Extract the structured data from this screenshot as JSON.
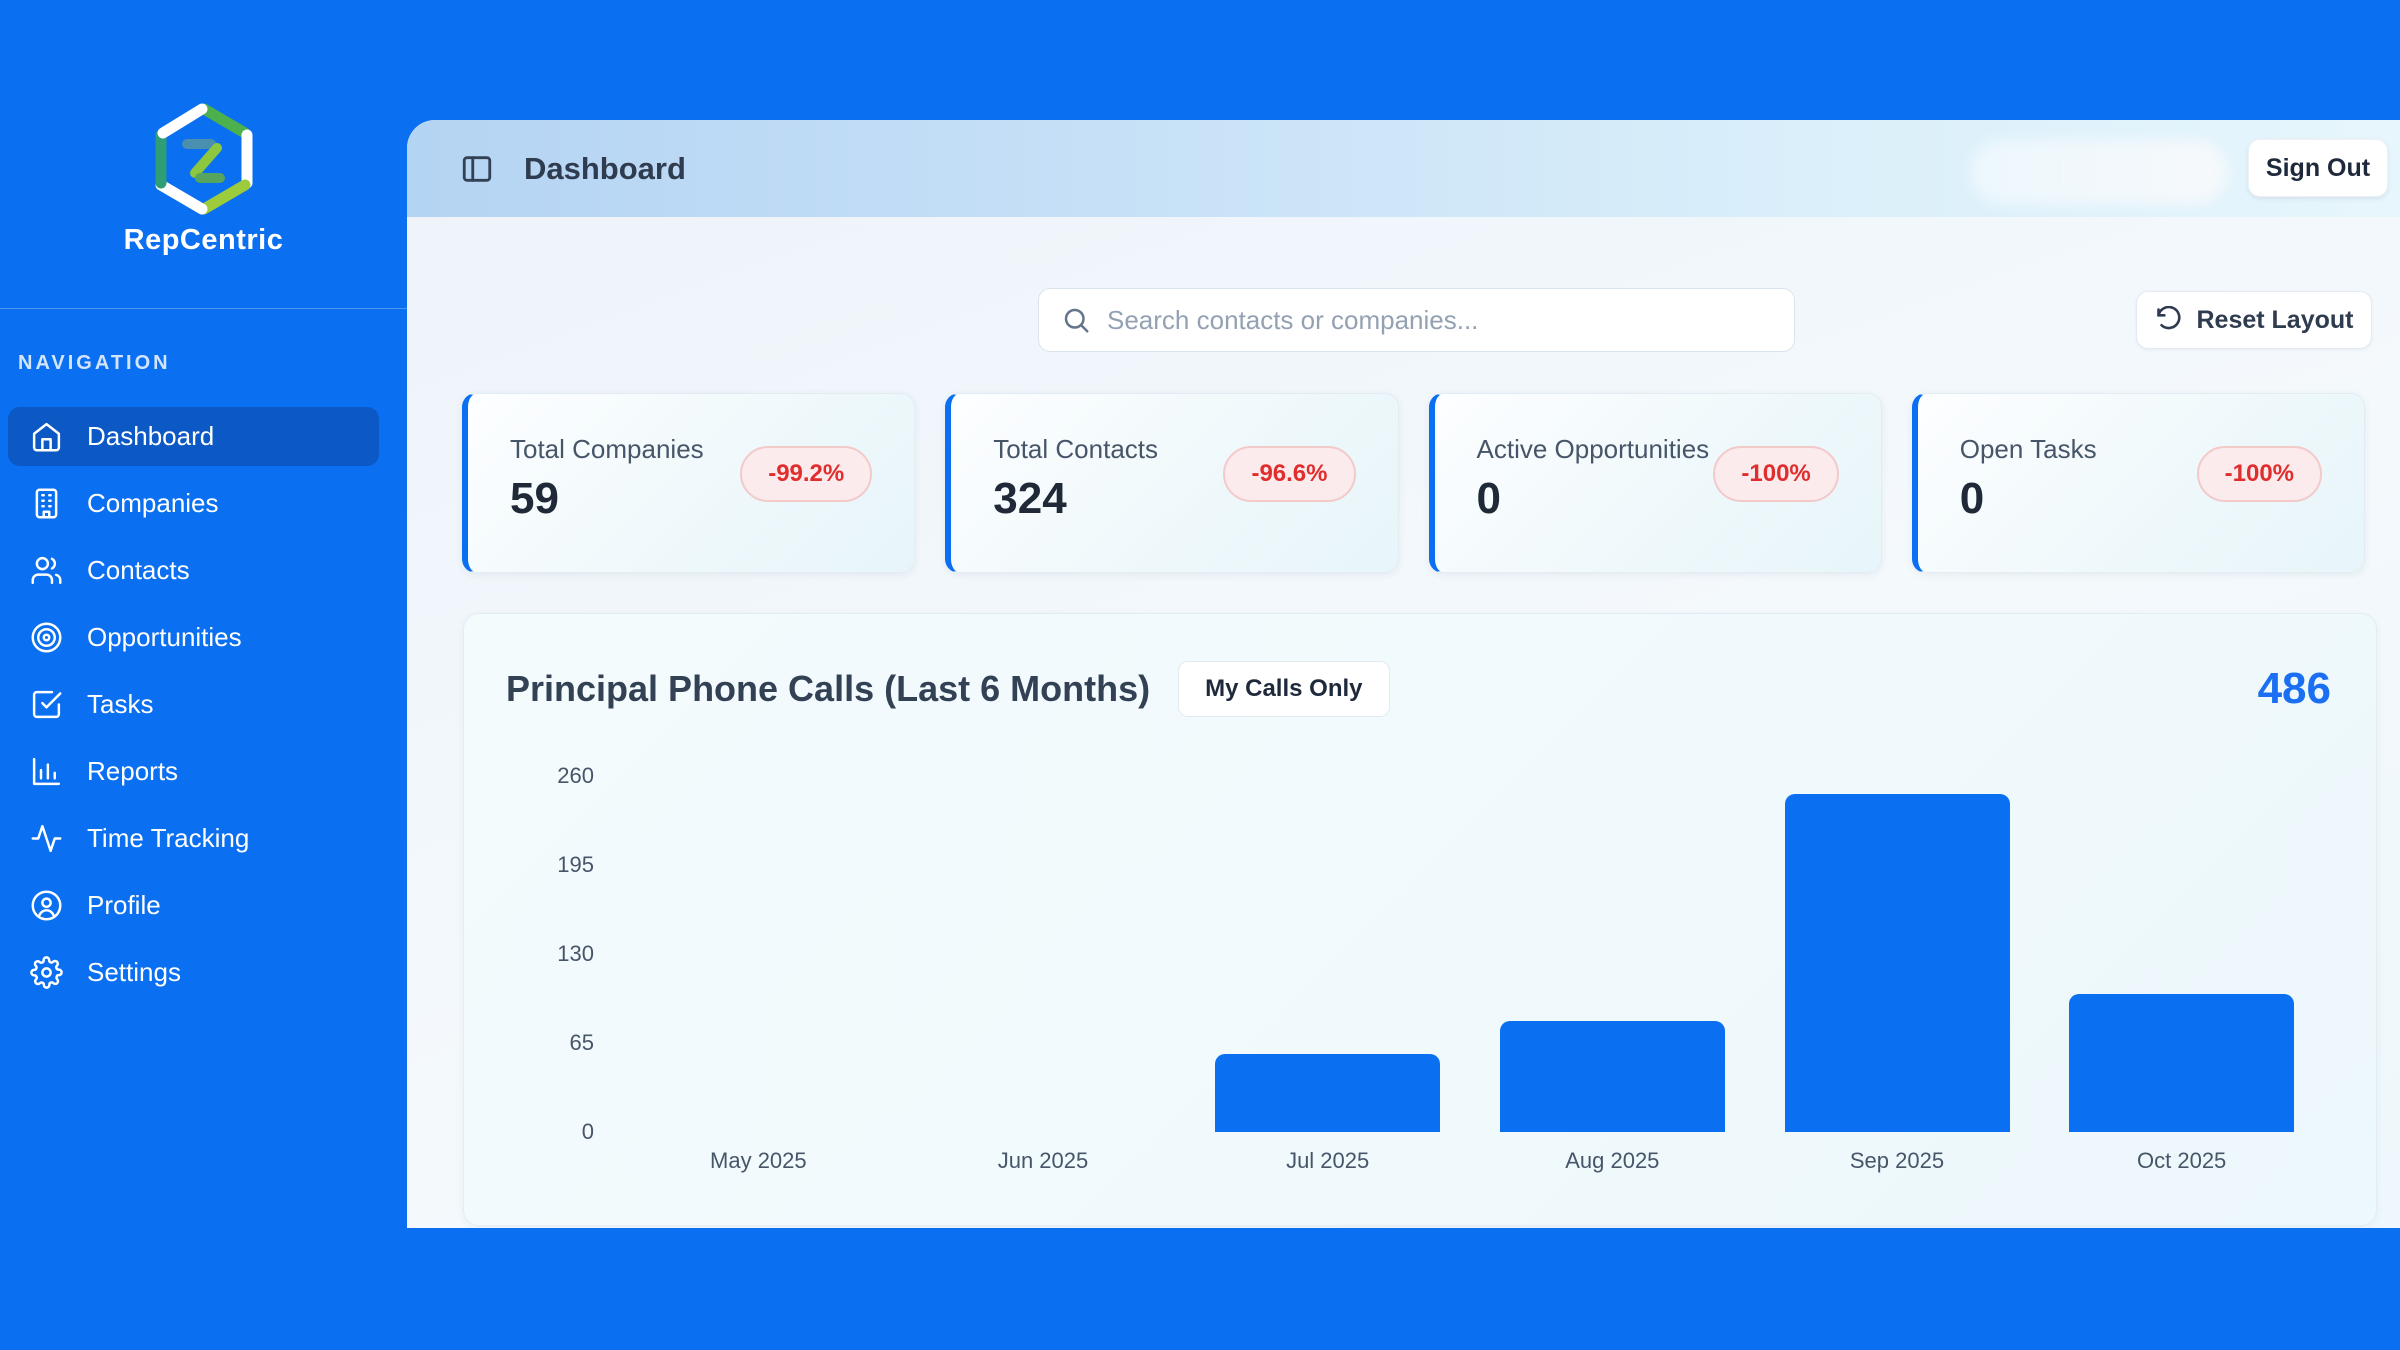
{
  "app": {
    "name": "RepCentric",
    "logo_icon": "repcentric-hexagon-logo"
  },
  "sidebar": {
    "section_label": "NAVIGATION",
    "items": [
      {
        "label": "Dashboard",
        "icon": "home-icon",
        "active": true
      },
      {
        "label": "Companies",
        "icon": "building-icon",
        "active": false
      },
      {
        "label": "Contacts",
        "icon": "users-icon",
        "active": false
      },
      {
        "label": "Opportunities",
        "icon": "target-icon",
        "active": false
      },
      {
        "label": "Tasks",
        "icon": "check-square-icon",
        "active": false
      },
      {
        "label": "Reports",
        "icon": "bar-chart-icon",
        "active": false
      },
      {
        "label": "Time Tracking",
        "icon": "activity-icon",
        "active": false
      },
      {
        "label": "Profile",
        "icon": "user-circle-icon",
        "active": false
      },
      {
        "label": "Settings",
        "icon": "gear-icon",
        "active": false
      }
    ]
  },
  "header": {
    "title": "Dashboard",
    "sign_out_label": "Sign Out",
    "user_chip": "redacted-blurred"
  },
  "toolbar": {
    "search_placeholder": "Search contacts or companies...",
    "reset_layout_label": "Reset Layout"
  },
  "stat_cards": [
    {
      "label": "Total Companies",
      "value": "59",
      "change": "-99.2%"
    },
    {
      "label": "Total Contacts",
      "value": "324",
      "change": "-96.6%"
    },
    {
      "label": "Active Opportunities",
      "value": "0",
      "change": "-100%"
    },
    {
      "label": "Open Tasks",
      "value": "0",
      "change": "-100%"
    }
  ],
  "chart_card": {
    "title": "Principal Phone Calls (Last 6 Months)",
    "toggle_label": "My Calls Only",
    "total": "486"
  },
  "chart_data": {
    "type": "bar",
    "title": "Principal Phone Calls (Last 6 Months)",
    "categories": [
      "May 2025",
      "Jun 2025",
      "Jul 2025",
      "Aug 2025",
      "Sep 2025",
      "Oct 2025"
    ],
    "values": [
      0,
      0,
      57,
      81,
      247,
      101
    ],
    "total": 486,
    "xlabel": "",
    "ylabel": "",
    "ylim": [
      0,
      260
    ],
    "yticks": [
      0,
      65,
      130,
      195,
      260
    ],
    "grid": false,
    "legend": "none",
    "bar_color": "#0a6ff0"
  },
  "colors": {
    "accent_blue": "#0a6ff0",
    "active_nav": "#0c58c4",
    "badge_bg": "#fbebec",
    "badge_border": "#f2caca",
    "badge_text": "#e02d2d",
    "title_text": "#334155",
    "total_text": "#1a6ff2"
  }
}
